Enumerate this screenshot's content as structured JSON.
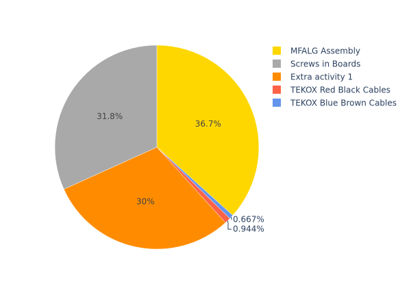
{
  "chart_data": {
    "type": "pie",
    "direction": "clockwise",
    "start_angle": "top",
    "legend_position": "top-right",
    "slices": [
      {
        "label": "MFALG Assembly",
        "percent": 36.7,
        "percent_label": "36.7%",
        "color": "#ffd700",
        "label_position": "inside"
      },
      {
        "label": "TEKOX Blue Brown Cables",
        "percent": 0.667,
        "percent_label": "0.667%",
        "color": "#6495ed",
        "label_position": "outside"
      },
      {
        "label": "TEKOX Red Black Cables",
        "percent": 0.944,
        "percent_label": "0.944%",
        "color": "#ff6347",
        "label_position": "outside"
      },
      {
        "label": "Extra activity 1",
        "percent": 30.0,
        "percent_label": "30%",
        "color": "#ff8c00",
        "label_position": "inside"
      },
      {
        "label": "Screws in Boards",
        "percent": 31.8,
        "percent_label": "31.8%",
        "color": "#a9a9a9",
        "label_position": "inside"
      }
    ],
    "legend": [
      {
        "label": "MFALG Assembly",
        "color": "#ffd700"
      },
      {
        "label": "Screws in Boards",
        "color": "#a9a9a9"
      },
      {
        "label": "Extra activity 1",
        "color": "#ff8c00"
      },
      {
        "label": "TEKOX Red Black Cables",
        "color": "#ff6347"
      },
      {
        "label": "TEKOX Blue Brown Cables",
        "color": "#6495ed"
      }
    ]
  }
}
